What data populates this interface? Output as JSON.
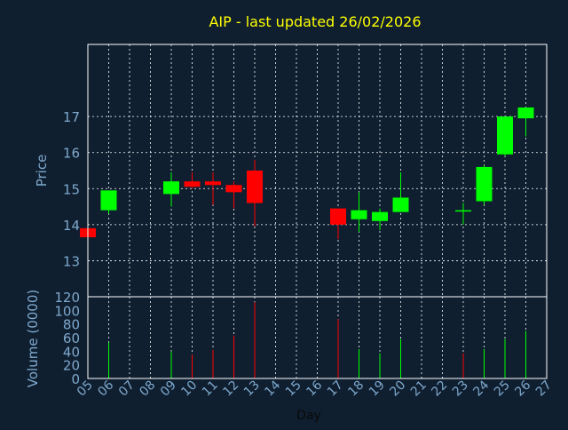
{
  "chart_data": {
    "type": "candlestick",
    "title": "AIP - last updated 26/02/2026",
    "price_ylabel": "Price",
    "volume_ylabel": "Volume (0000)",
    "xlabel": "Day",
    "x_ticks": [
      "05",
      "06",
      "07",
      "08",
      "09",
      "10",
      "11",
      "12",
      "13",
      "14",
      "15",
      "16",
      "17",
      "18",
      "19",
      "20",
      "21",
      "22",
      "23",
      "24",
      "25",
      "26",
      "27"
    ],
    "price_ylim": [
      12,
      19
    ],
    "price_yticks": [
      "13",
      "14",
      "15",
      "16",
      "17"
    ],
    "volume_ylim": [
      0,
      120
    ],
    "volume_yticks": [
      "0",
      "20",
      "40",
      "60",
      "80",
      "100",
      "120"
    ],
    "grid": true,
    "colors": {
      "background": "#0f1f30",
      "plot_border": "#ffffff",
      "grid": "#ffffff",
      "title": "#ffff00",
      "axis_text": "#7fa8cc",
      "up": "#00ff00",
      "down": "#ff0000"
    },
    "candles": [
      {
        "day": "05",
        "open": 13.9,
        "high": 13.9,
        "low": 13.65,
        "close": 13.65
      },
      {
        "day": "06",
        "open": 14.4,
        "high": 14.95,
        "low": 14.3,
        "close": 14.95
      },
      {
        "day": "09",
        "open": 14.85,
        "high": 15.45,
        "low": 14.5,
        "close": 15.2
      },
      {
        "day": "10",
        "open": 15.2,
        "high": 15.45,
        "low": 15.0,
        "close": 15.05
      },
      {
        "day": "11",
        "open": 15.2,
        "high": 15.45,
        "low": 14.55,
        "close": 15.1
      },
      {
        "day": "12",
        "open": 15.1,
        "high": 15.2,
        "low": 14.45,
        "close": 14.9
      },
      {
        "day": "13",
        "open": 15.5,
        "high": 15.8,
        "low": 13.95,
        "close": 14.6
      },
      {
        "day": "17",
        "open": 14.45,
        "high": 14.45,
        "low": 13.6,
        "close": 14.0
      },
      {
        "day": "18",
        "open": 14.15,
        "high": 14.9,
        "low": 13.8,
        "close": 14.4
      },
      {
        "day": "19",
        "open": 14.1,
        "high": 14.45,
        "low": 13.85,
        "close": 14.35
      },
      {
        "day": "20",
        "open": 14.35,
        "high": 15.45,
        "low": 14.35,
        "close": 14.75
      },
      {
        "day": "23",
        "open": 14.4,
        "high": 14.6,
        "low": 14.0,
        "close": 14.4
      },
      {
        "day": "24",
        "open": 14.65,
        "high": 15.65,
        "low": 14.55,
        "close": 15.6
      },
      {
        "day": "25",
        "open": 15.95,
        "high": 17.0,
        "low": 15.9,
        "close": 17.0
      },
      {
        "day": "26",
        "open": 16.95,
        "high": 17.25,
        "low": 16.45,
        "close": 17.25
      }
    ],
    "volume": [
      {
        "day": "06",
        "value": 53,
        "dir": "up"
      },
      {
        "day": "09",
        "value": 40,
        "dir": "up"
      },
      {
        "day": "10",
        "value": 35,
        "dir": "down"
      },
      {
        "day": "11",
        "value": 42,
        "dir": "down"
      },
      {
        "day": "12",
        "value": 63,
        "dir": "down"
      },
      {
        "day": "13",
        "value": 112,
        "dir": "down"
      },
      {
        "day": "17",
        "value": 87,
        "dir": "down"
      },
      {
        "day": "18",
        "value": 43,
        "dir": "up"
      },
      {
        "day": "19",
        "value": 37,
        "dir": "up"
      },
      {
        "day": "20",
        "value": 58,
        "dir": "up"
      },
      {
        "day": "23",
        "value": 37,
        "dir": "down"
      },
      {
        "day": "24",
        "value": 43,
        "dir": "up"
      },
      {
        "day": "25",
        "value": 58,
        "dir": "up"
      },
      {
        "day": "26",
        "value": 70,
        "dir": "up"
      }
    ]
  }
}
